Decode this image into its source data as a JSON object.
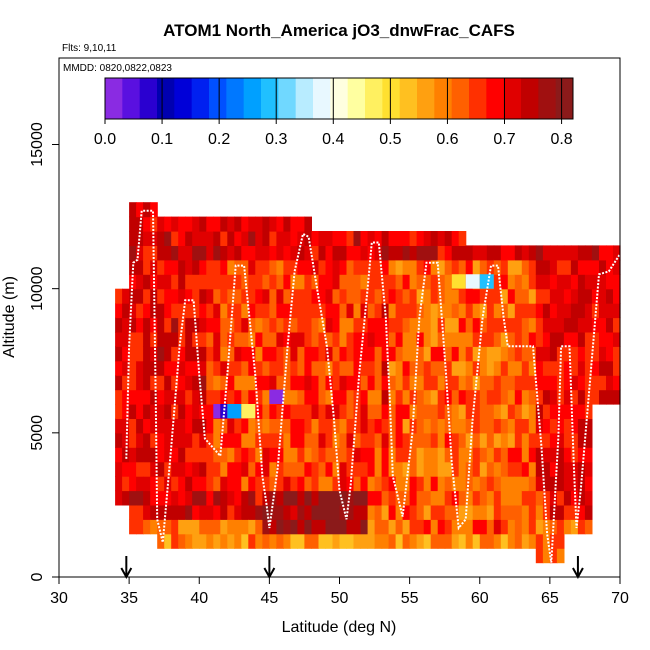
{
  "chart_data": {
    "type": "heatmap",
    "title": "ATOM1 North_America jO3_dnwFrac_CAFS",
    "flights_label": "Flts: 9,10,11",
    "dates_label": "MMDD: 0820,0822,0823",
    "xlabel": "Latitude (deg N)",
    "ylabel": "Altitude (m)",
    "xlim": [
      30,
      70
    ],
    "ylim": [
      0,
      18000
    ],
    "xticks": [
      "30",
      "35",
      "40",
      "45",
      "50",
      "55",
      "60",
      "65",
      "70"
    ],
    "yticks": [
      "0",
      "5000",
      "10000",
      "15000"
    ],
    "colorbar": {
      "min": 0.0,
      "max": 0.82,
      "tick_labels": [
        "0.0",
        "0.1",
        "0.2",
        "0.3",
        "0.4",
        "0.5",
        "0.6",
        "0.7",
        "0.8"
      ],
      "colors": [
        "#8a2be2",
        "#5a10e0",
        "#2a00d0",
        "#0000b0",
        "#0000d8",
        "#0020f0",
        "#0050ff",
        "#0078ff",
        "#00a0ff",
        "#20c0ff",
        "#70d8ff",
        "#b8ecff",
        "#e8f8ff",
        "#ffffe0",
        "#ffffa0",
        "#fff060",
        "#ffe030",
        "#ffc020",
        "#ffa010",
        "#ff8000",
        "#ff6000",
        "#ff3000",
        "#ff0000",
        "#e00000",
        "#c00000",
        "#a01010",
        "#8b1a1a"
      ]
    },
    "arrows_lat": [
      34.8,
      45,
      67
    ],
    "column_extents": [
      {
        "lat0": 34.0,
        "lat1": 35.0,
        "alt0": 2500,
        "alt1": 10000
      },
      {
        "lat0": 35.0,
        "lat1": 37.0,
        "alt0": 1500,
        "alt1": 13000
      },
      {
        "lat0": 37.0,
        "lat1": 48.0,
        "alt0": 1000,
        "alt1": 12500
      },
      {
        "lat0": 48.0,
        "lat1": 59.0,
        "alt0": 1000,
        "alt1": 12000
      },
      {
        "lat0": 59.0,
        "lat1": 64.0,
        "alt0": 1000,
        "alt1": 11500
      },
      {
        "lat0": 64.0,
        "lat1": 66.0,
        "alt0": 500,
        "alt1": 11500
      },
      {
        "lat0": 66.0,
        "lat1": 68.0,
        "alt0": 1500,
        "alt1": 11500
      },
      {
        "lat0": 68.0,
        "lat1": 70.0,
        "alt0": 6000,
        "alt1": 11500
      }
    ],
    "special_cells": [
      {
        "lat0": 41.0,
        "lat1": 41.5,
        "alt0": 5500,
        "alt1": 6000,
        "value": 0.02
      },
      {
        "lat0": 41.5,
        "lat1": 42.0,
        "alt0": 5500,
        "alt1": 6000,
        "value": 0.07
      },
      {
        "lat0": 42.0,
        "lat1": 43.0,
        "alt0": 5500,
        "alt1": 6000,
        "value": 0.26
      },
      {
        "lat0": 43.0,
        "lat1": 44.0,
        "alt0": 5500,
        "alt1": 6000,
        "value": 0.48
      },
      {
        "lat0": 45.0,
        "lat1": 46.0,
        "alt0": 6000,
        "alt1": 6500,
        "value": 0.03
      },
      {
        "lat0": 58.0,
        "lat1": 59.0,
        "alt0": 10000,
        "alt1": 10500,
        "value": 0.5
      },
      {
        "lat0": 59.0,
        "lat1": 60.0,
        "alt0": 10000,
        "alt1": 10500,
        "value": 0.38
      },
      {
        "lat0": 60.0,
        "lat1": 61.0,
        "alt0": 10000,
        "alt1": 10500,
        "value": 0.28
      }
    ],
    "flight_track": [
      [
        34.8,
        4100
      ],
      [
        35.0,
        8000
      ],
      [
        35.3,
        10900
      ],
      [
        35.6,
        11000
      ],
      [
        35.9,
        12700
      ],
      [
        36.3,
        12700
      ],
      [
        36.7,
        12700
      ],
      [
        36.9,
        6000
      ],
      [
        37.0,
        2000
      ],
      [
        37.4,
        1200
      ],
      [
        38.0,
        4500
      ],
      [
        38.6,
        8000
      ],
      [
        39.0,
        9600
      ],
      [
        39.6,
        9600
      ],
      [
        40.0,
        7000
      ],
      [
        40.4,
        4800
      ],
      [
        41.5,
        4200
      ],
      [
        42.0,
        7000
      ],
      [
        42.6,
        10800
      ],
      [
        43.2,
        10800
      ],
      [
        44.0,
        7000
      ],
      [
        44.5,
        3500
      ],
      [
        44.8,
        2500
      ],
      [
        45.0,
        1700
      ],
      [
        45.6,
        3800
      ],
      [
        46.3,
        8000
      ],
      [
        46.8,
        10600
      ],
      [
        47.4,
        11900
      ],
      [
        47.8,
        11800
      ],
      [
        48.4,
        10000
      ],
      [
        49.1,
        8000
      ],
      [
        49.6,
        5500
      ],
      [
        50.0,
        3000
      ],
      [
        50.5,
        2000
      ],
      [
        50.8,
        3200
      ],
      [
        51.4,
        7000
      ],
      [
        52.0,
        10000
      ],
      [
        52.3,
        11600
      ],
      [
        52.8,
        11600
      ],
      [
        53.3,
        9000
      ],
      [
        53.6,
        6000
      ],
      [
        53.8,
        3500
      ],
      [
        54.5,
        2100
      ],
      [
        55.2,
        5000
      ],
      [
        55.7,
        9000
      ],
      [
        56.2,
        10900
      ],
      [
        57.0,
        10900
      ],
      [
        57.6,
        7000
      ],
      [
        58.0,
        4000
      ],
      [
        58.5,
        1700
      ],
      [
        59.0,
        2000
      ],
      [
        59.5,
        5500
      ],
      [
        60.2,
        9000
      ],
      [
        60.8,
        10800
      ],
      [
        61.3,
        10800
      ],
      [
        61.7,
        9000
      ],
      [
        62.0,
        8000
      ],
      [
        63.0,
        8000
      ],
      [
        63.8,
        8000
      ],
      [
        64.4,
        4500
      ],
      [
        64.8,
        1500
      ],
      [
        65.1,
        500
      ],
      [
        65.6,
        4800
      ],
      [
        65.8,
        8000
      ],
      [
        66.4,
        8000
      ],
      [
        66.7,
        4000
      ],
      [
        66.9,
        1700
      ],
      [
        67.2,
        3000
      ],
      [
        67.9,
        7000
      ],
      [
        68.5,
        10500
      ],
      [
        69.2,
        10600
      ],
      [
        70,
        11200
      ]
    ]
  }
}
